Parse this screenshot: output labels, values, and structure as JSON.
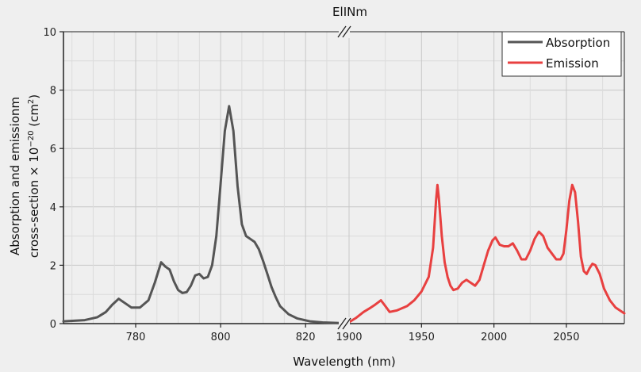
{
  "chart_data": {
    "type": "line",
    "title": "ElINm",
    "xlabel": "Wavelength (nm)",
    "ylabel_line1": "Absorption and emissionm",
    "ylabel_line2_prefix": "cross-section × 10",
    "ylabel_exp": "−20",
    "ylabel_unit_prefix": " (cm",
    "ylabel_unit_exp": "2",
    "ylabel_unit_suffix": ")",
    "ylim": [
      0,
      10
    ],
    "yticks": [
      0,
      2,
      4,
      6,
      8,
      10
    ],
    "grid": true,
    "legend_position": "top-right",
    "x_break": true,
    "segments": [
      {
        "xlim": [
          763,
          828
        ],
        "xticks": [
          780,
          800,
          820
        ]
      },
      {
        "xlim": [
          1900,
          2090
        ],
        "xticks": [
          1900,
          1950,
          2000,
          2050
        ]
      }
    ],
    "series": [
      {
        "name": "Absorption",
        "color": "#555555",
        "segment": 0,
        "points": [
          [
            763,
            0.08
          ],
          [
            768,
            0.12
          ],
          [
            771,
            0.22
          ],
          [
            773,
            0.4
          ],
          [
            774.5,
            0.65
          ],
          [
            776,
            0.85
          ],
          [
            777.5,
            0.7
          ],
          [
            779,
            0.55
          ],
          [
            781,
            0.55
          ],
          [
            783,
            0.8
          ],
          [
            784.5,
            1.4
          ],
          [
            786,
            2.1
          ],
          [
            787,
            1.95
          ],
          [
            788,
            1.85
          ],
          [
            789,
            1.45
          ],
          [
            790,
            1.15
          ],
          [
            791,
            1.05
          ],
          [
            792,
            1.08
          ],
          [
            793,
            1.3
          ],
          [
            794,
            1.65
          ],
          [
            795,
            1.7
          ],
          [
            796,
            1.55
          ],
          [
            797,
            1.6
          ],
          [
            798,
            2.0
          ],
          [
            799,
            3.0
          ],
          [
            800,
            4.8
          ],
          [
            801,
            6.6
          ],
          [
            802,
            7.45
          ],
          [
            803,
            6.6
          ],
          [
            804,
            4.7
          ],
          [
            805,
            3.4
          ],
          [
            806,
            3.0
          ],
          [
            807,
            2.9
          ],
          [
            808,
            2.8
          ],
          [
            809,
            2.55
          ],
          [
            810,
            2.15
          ],
          [
            811,
            1.7
          ],
          [
            812,
            1.25
          ],
          [
            813,
            0.9
          ],
          [
            814,
            0.6
          ],
          [
            816,
            0.32
          ],
          [
            818,
            0.18
          ],
          [
            821,
            0.08
          ],
          [
            824,
            0.04
          ],
          [
            828,
            0.02
          ]
        ]
      },
      {
        "name": "Emission",
        "color": "#e84040",
        "segment": 1,
        "points": [
          [
            1900,
            0.05
          ],
          [
            1905,
            0.2
          ],
          [
            1910,
            0.4
          ],
          [
            1915,
            0.55
          ],
          [
            1918,
            0.65
          ],
          [
            1922,
            0.8
          ],
          [
            1925,
            0.6
          ],
          [
            1928,
            0.4
          ],
          [
            1933,
            0.45
          ],
          [
            1940,
            0.6
          ],
          [
            1945,
            0.8
          ],
          [
            1950,
            1.1
          ],
          [
            1955,
            1.6
          ],
          [
            1958,
            2.6
          ],
          [
            1960,
            4.2
          ],
          [
            1961,
            4.75
          ],
          [
            1962,
            4.3
          ],
          [
            1964,
            3.0
          ],
          [
            1966,
            2.1
          ],
          [
            1968,
            1.6
          ],
          [
            1970,
            1.3
          ],
          [
            1972,
            1.15
          ],
          [
            1975,
            1.2
          ],
          [
            1978,
            1.4
          ],
          [
            1981,
            1.5
          ],
          [
            1984,
            1.4
          ],
          [
            1987,
            1.3
          ],
          [
            1990,
            1.5
          ],
          [
            1993,
            2.0
          ],
          [
            1996,
            2.5
          ],
          [
            1999,
            2.85
          ],
          [
            2001,
            2.95
          ],
          [
            2004,
            2.7
          ],
          [
            2007,
            2.65
          ],
          [
            2010,
            2.65
          ],
          [
            2013,
            2.75
          ],
          [
            2016,
            2.5
          ],
          [
            2019,
            2.2
          ],
          [
            2022,
            2.2
          ],
          [
            2025,
            2.5
          ],
          [
            2028,
            2.9
          ],
          [
            2031,
            3.15
          ],
          [
            2034,
            3.0
          ],
          [
            2037,
            2.6
          ],
          [
            2040,
            2.4
          ],
          [
            2043,
            2.2
          ],
          [
            2046,
            2.2
          ],
          [
            2048,
            2.4
          ],
          [
            2050,
            3.2
          ],
          [
            2052,
            4.2
          ],
          [
            2054,
            4.75
          ],
          [
            2056,
            4.5
          ],
          [
            2058,
            3.5
          ],
          [
            2060,
            2.3
          ],
          [
            2062,
            1.8
          ],
          [
            2064,
            1.7
          ],
          [
            2066,
            1.9
          ],
          [
            2068,
            2.05
          ],
          [
            2070,
            2.0
          ],
          [
            2073,
            1.7
          ],
          [
            2076,
            1.2
          ],
          [
            2080,
            0.8
          ],
          [
            2084,
            0.55
          ],
          [
            2090,
            0.35
          ]
        ]
      }
    ]
  }
}
